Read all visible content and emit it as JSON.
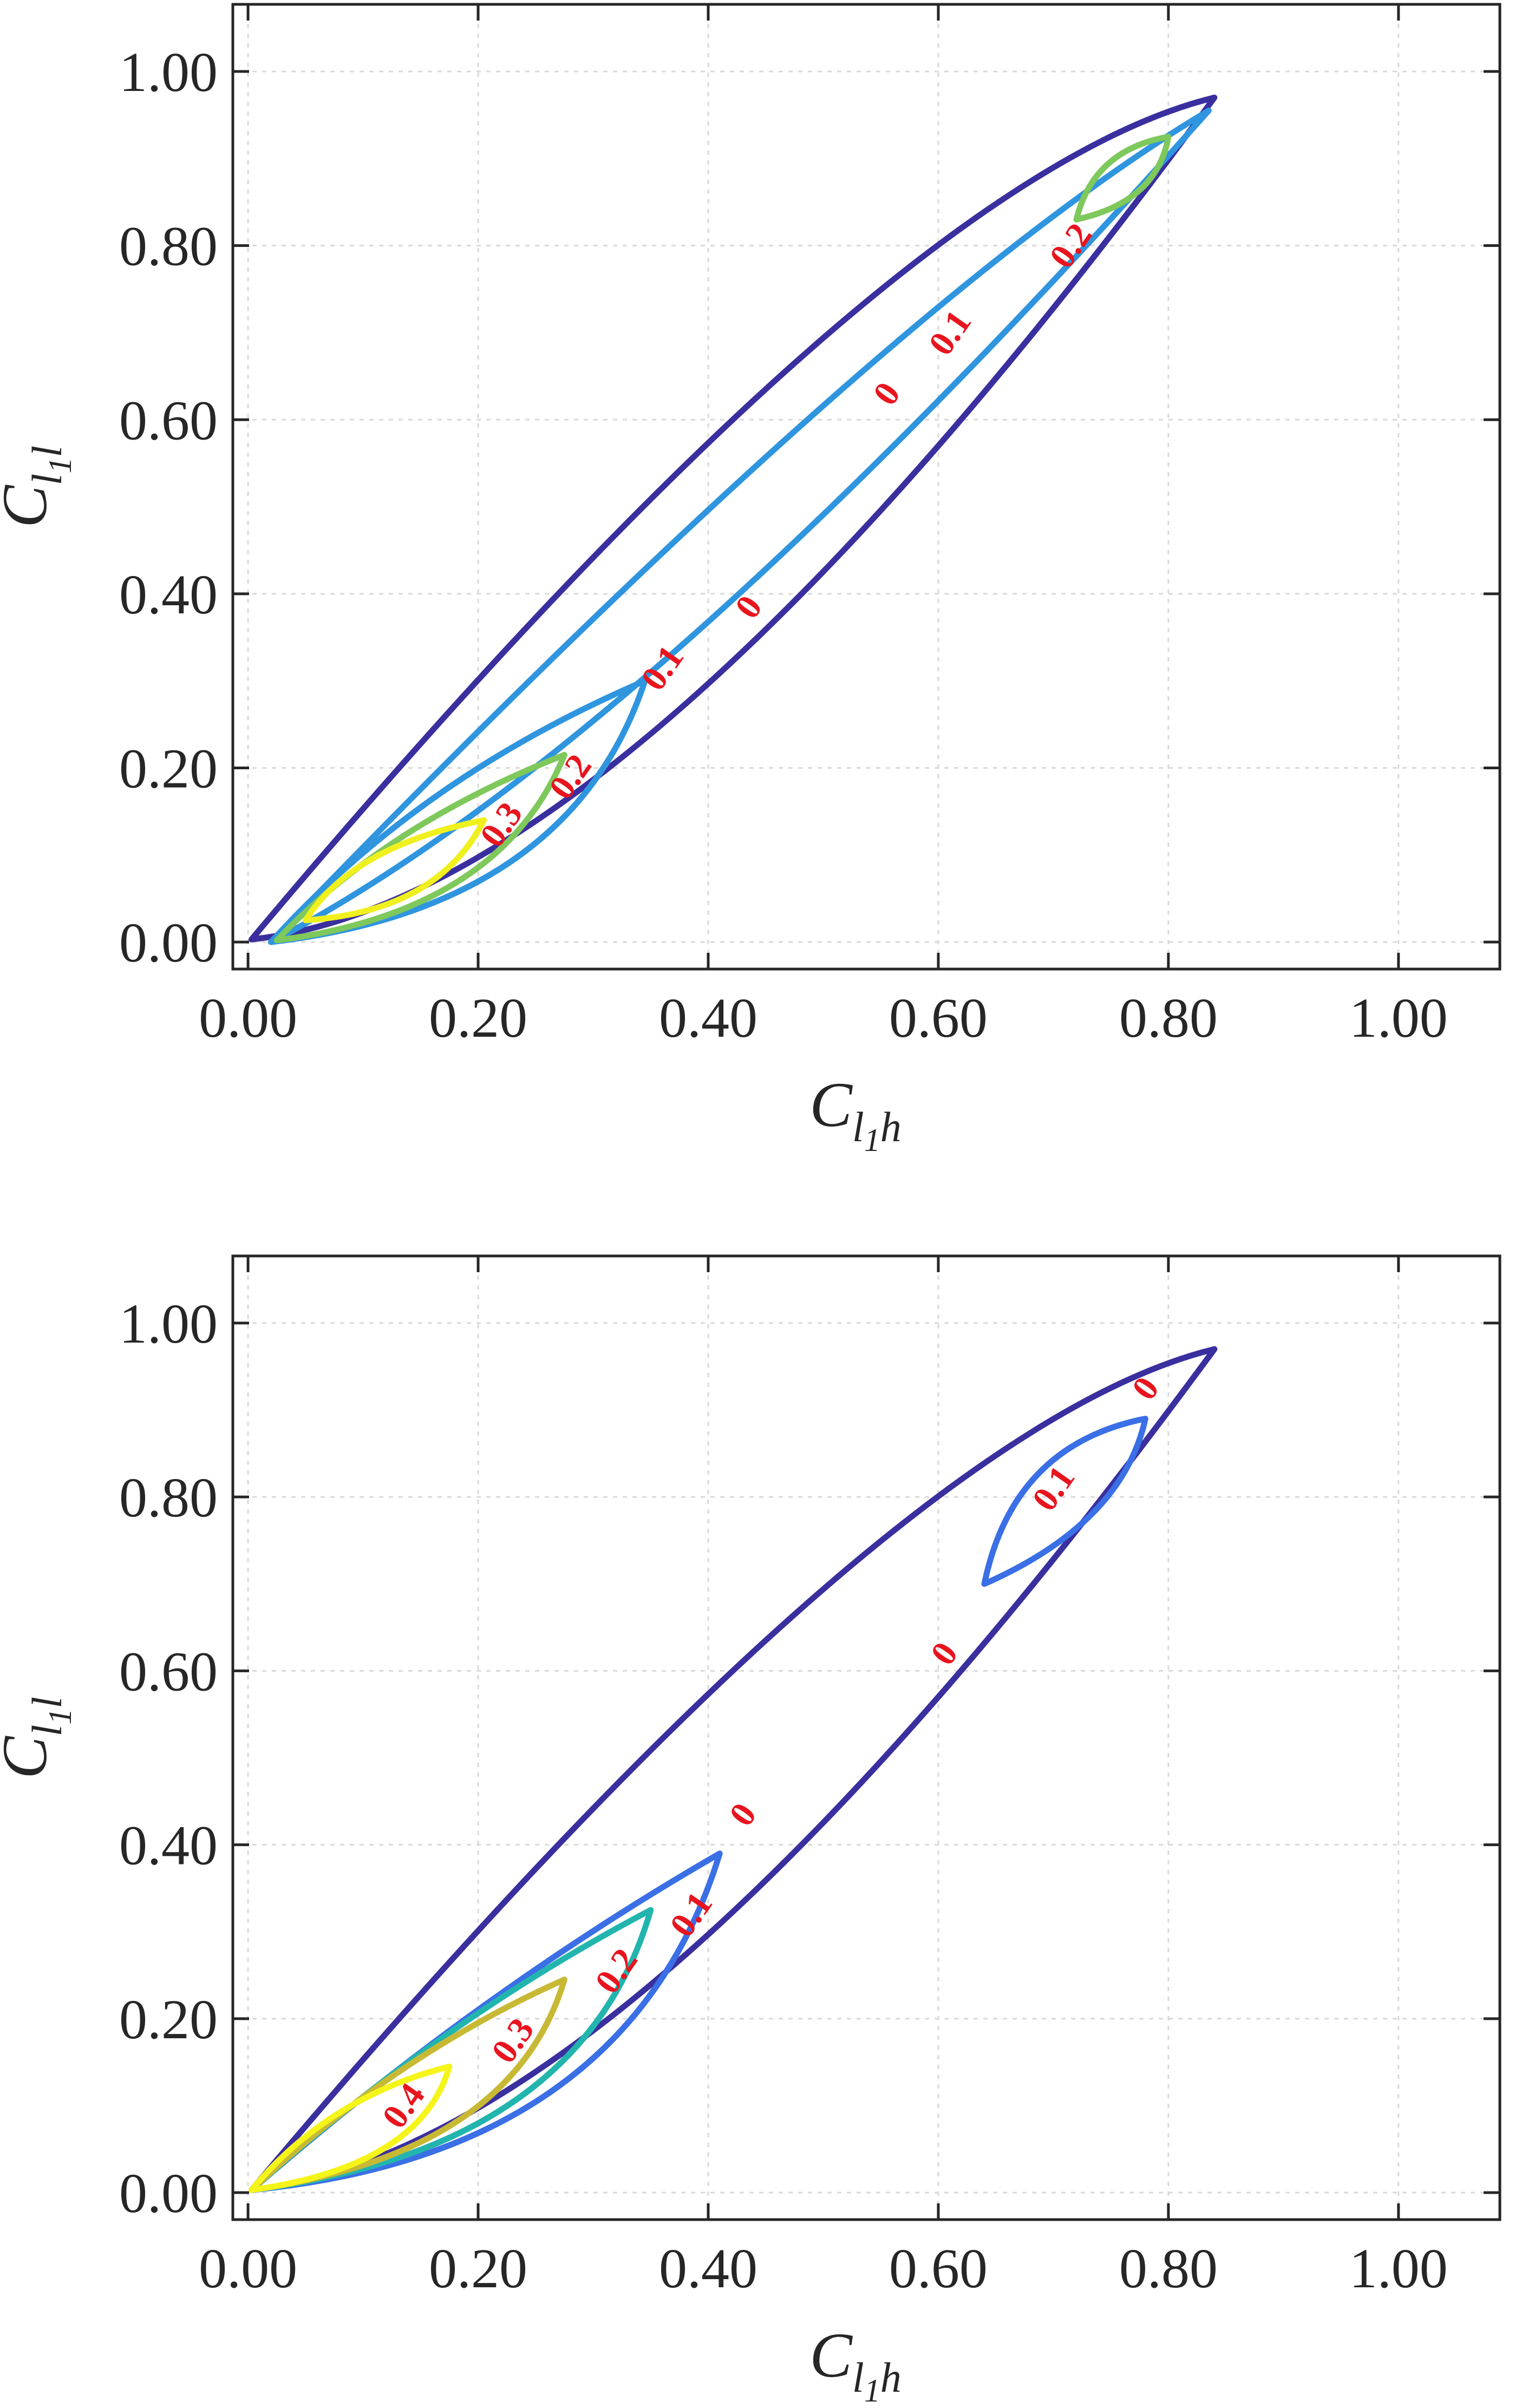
{
  "colors": {
    "level_0": "#3a2f9e",
    "level_0.1_top": "#2f95df",
    "level_0.1_bottom": "#3a6fe6",
    "level_0.2_top": "#7ec85c",
    "level_0.2_bottom": "#22b5ae",
    "level_0.3_top": "#f0f01e",
    "level_0.3_bottom": "#c8b935",
    "level_0.4": "#f5f51a",
    "label": "#e8141e"
  },
  "chart_data": [
    {
      "type": "contour",
      "xlabel": "C_{l_1 h}",
      "ylabel": "C_{l_1 l}",
      "xlim": [
        0,
        1
      ],
      "ylim": [
        0,
        1
      ],
      "xticks": [
        "0.00",
        "0.20",
        "0.40",
        "0.60",
        "0.80",
        "1.00"
      ],
      "yticks": [
        "0.00",
        "0.20",
        "0.40",
        "0.60",
        "0.80",
        "1.00"
      ],
      "grid": true,
      "levels": [
        0,
        0.1,
        0.2,
        0.3
      ],
      "contour_labels": [
        {
          "text": "0",
          "x": 0.555,
          "y": 0.63
        },
        {
          "text": "0",
          "x": 0.435,
          "y": 0.385
        },
        {
          "text": "0.1",
          "x": 0.61,
          "y": 0.7
        },
        {
          "text": "0.1",
          "x": 0.36,
          "y": 0.315
        },
        {
          "text": "0.2",
          "x": 0.715,
          "y": 0.8
        },
        {
          "text": "0.2",
          "x": 0.28,
          "y": 0.19
        },
        {
          "text": "0.3",
          "x": 0.22,
          "y": 0.135
        }
      ]
    },
    {
      "type": "contour",
      "xlabel": "C_{l_1 h}",
      "ylabel": "C_{l_1 l}",
      "xlim": [
        0,
        1
      ],
      "ylim": [
        0,
        1
      ],
      "xticks": [
        "0.00",
        "0.20",
        "0.40",
        "0.60",
        "0.80",
        "1.00"
      ],
      "yticks": [
        "0.00",
        "0.20",
        "0.40",
        "0.60",
        "0.80",
        "1.00"
      ],
      "grid": true,
      "levels": [
        0,
        0.1,
        0.2,
        0.3,
        0.4
      ],
      "contour_labels": [
        {
          "text": "0",
          "x": 0.78,
          "y": 0.925
        },
        {
          "text": "0",
          "x": 0.605,
          "y": 0.62
        },
        {
          "text": "0",
          "x": 0.43,
          "y": 0.435
        },
        {
          "text": "0.1",
          "x": 0.7,
          "y": 0.81
        },
        {
          "text": "0.1",
          "x": 0.385,
          "y": 0.32
        },
        {
          "text": "0.2",
          "x": 0.32,
          "y": 0.255
        },
        {
          "text": "0.3",
          "x": 0.23,
          "y": 0.175
        },
        {
          "text": "0.4",
          "x": 0.135,
          "y": 0.1
        }
      ]
    }
  ]
}
